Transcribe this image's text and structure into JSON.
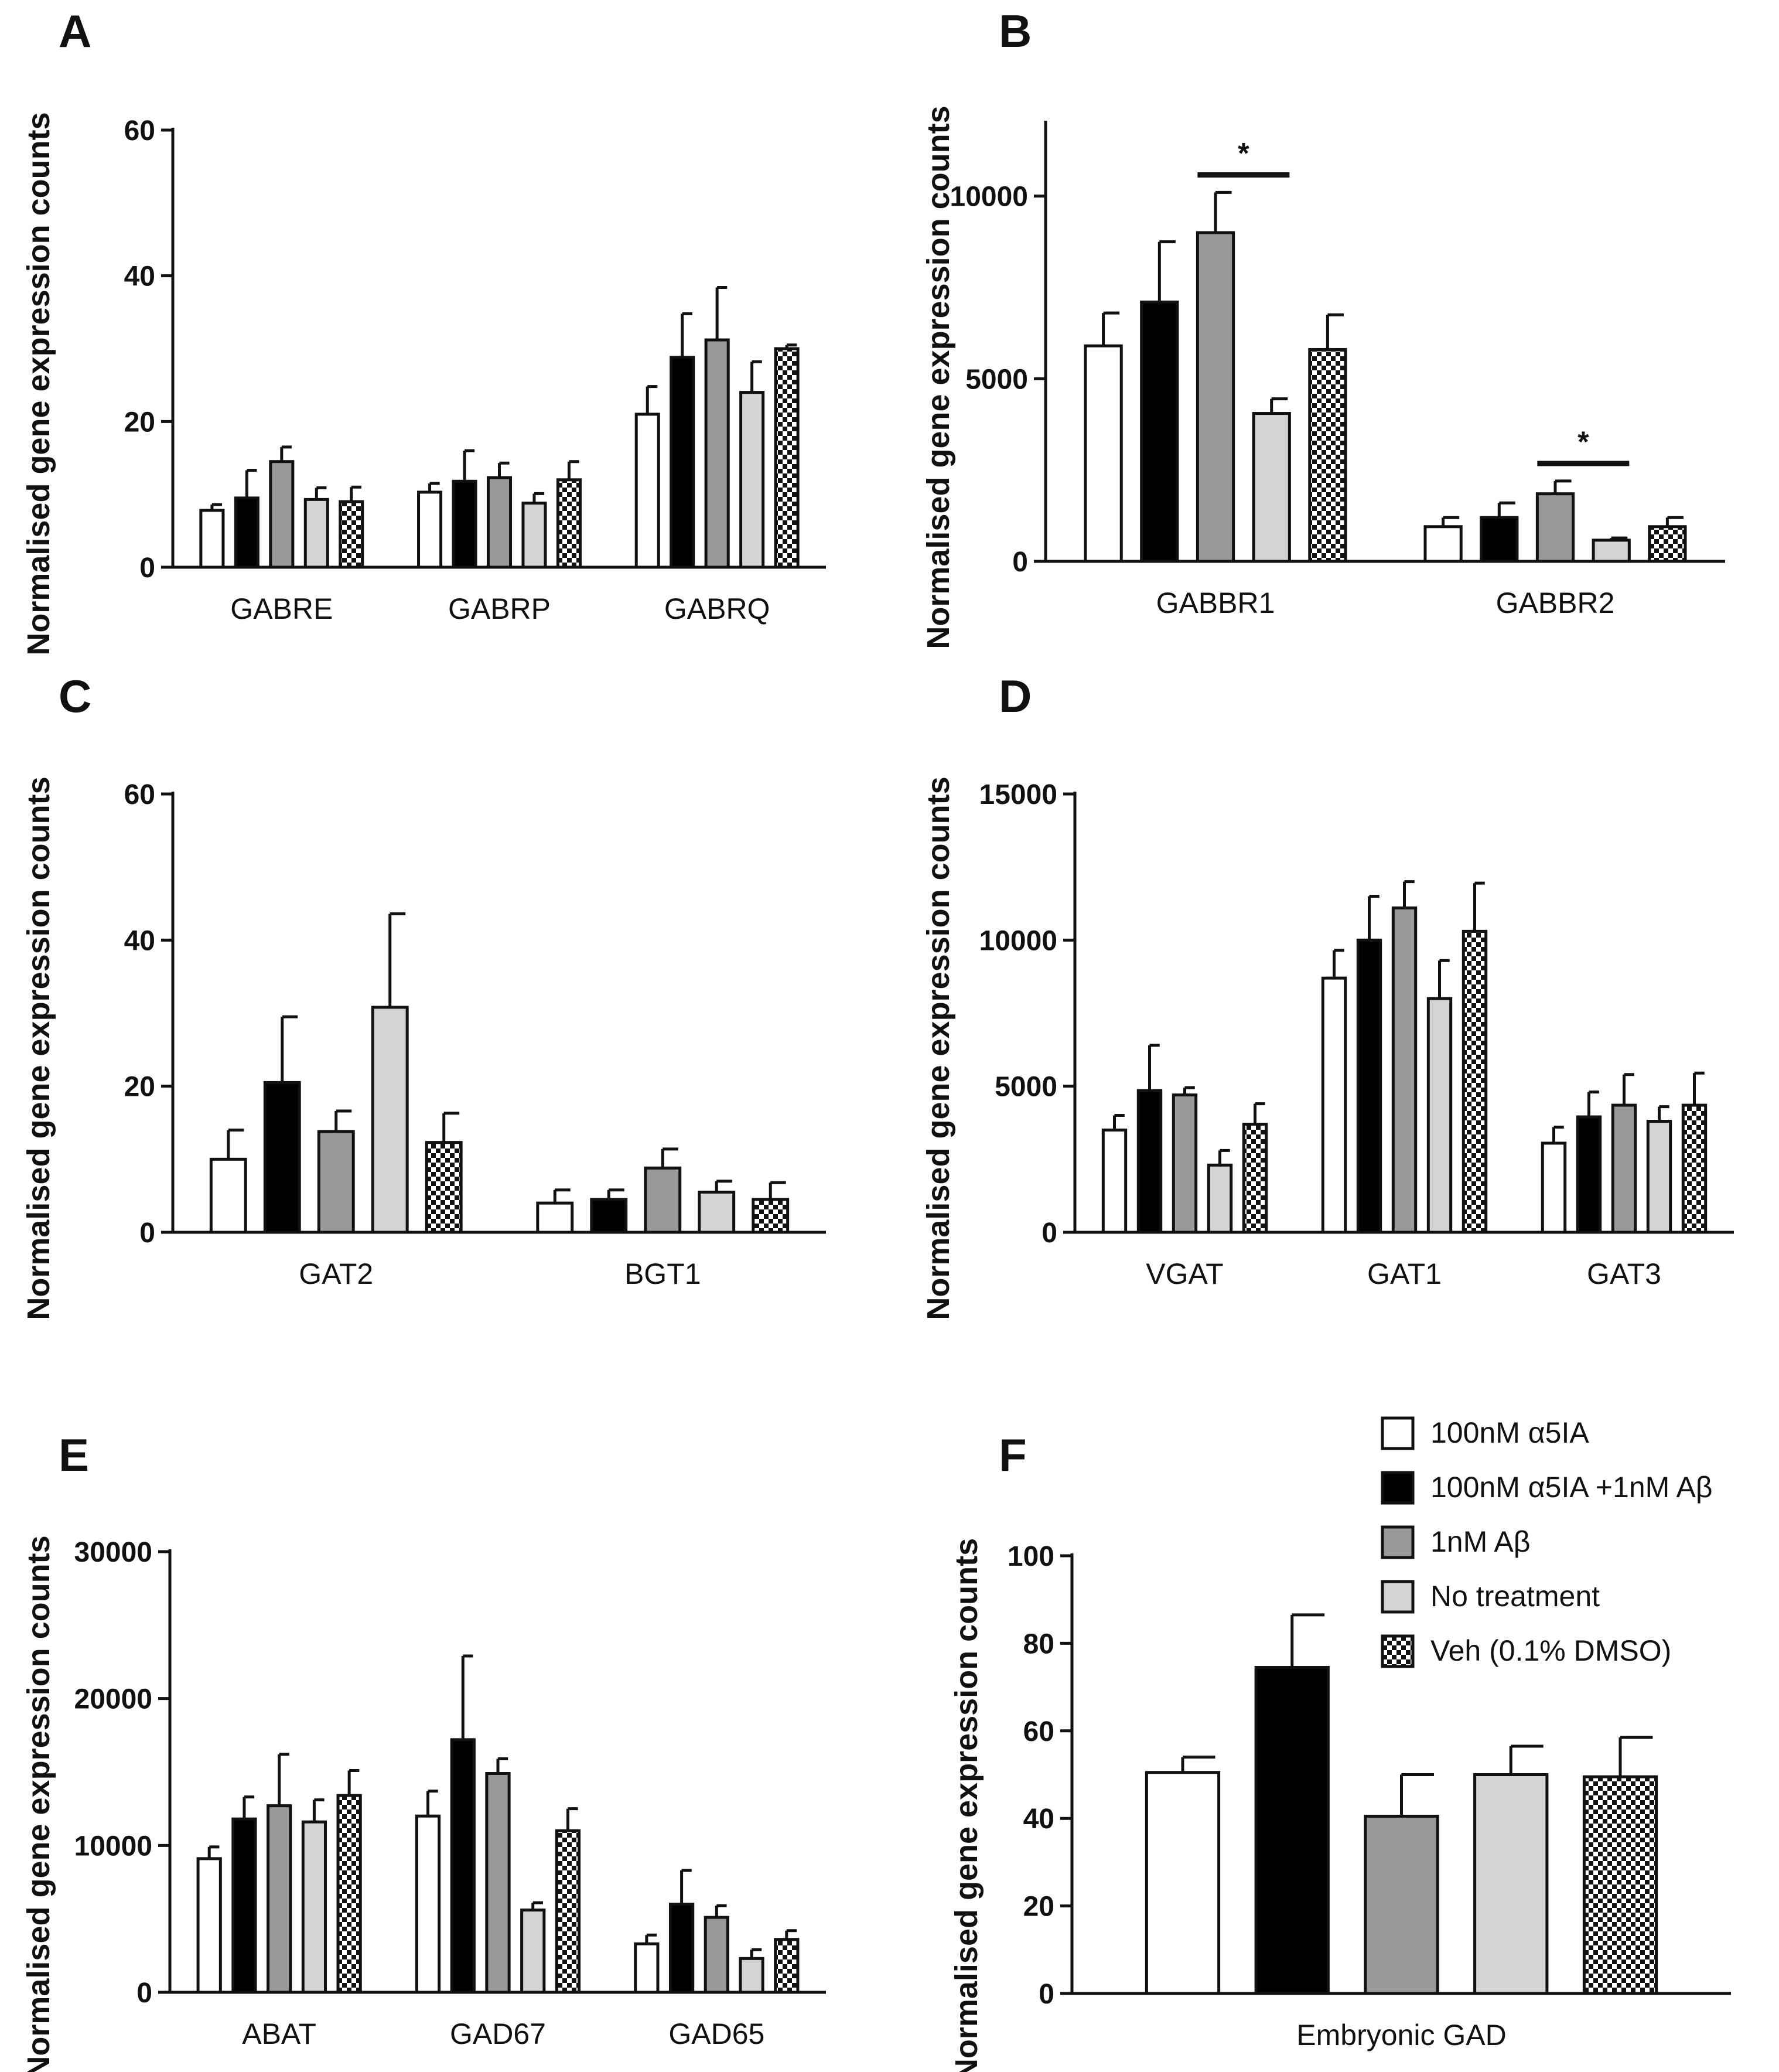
{
  "legend": [
    {
      "key": "a5ia",
      "label": "100nM α5IA",
      "fill": "#ffffff"
    },
    {
      "key": "a5ia_ab",
      "label": "100nM α5IA +1nM Aβ",
      "fill": "#000000"
    },
    {
      "key": "ab",
      "label": "1nM Aβ",
      "fill": "#999999"
    },
    {
      "key": "none",
      "label": "No treatment",
      "fill": "#d4d4d4"
    },
    {
      "key": "veh",
      "label": "Veh (0.1% DMSO)",
      "fill": "checker"
    }
  ],
  "chart_data": [
    {
      "panel": "A",
      "type": "bar",
      "ylabel": "Normalised gene expression counts",
      "ylim": [
        0,
        60
      ],
      "yticks": [
        0,
        20,
        40,
        60
      ],
      "categories": [
        "GABRE",
        "GABRP",
        "GABRQ"
      ],
      "series": [
        {
          "name": "100nM α5IA",
          "values": [
            7.8,
            10.3,
            21.0
          ],
          "errors": [
            0.8,
            1.2,
            3.8
          ]
        },
        {
          "name": "100nM α5IA +1nM Aβ",
          "values": [
            9.5,
            11.8,
            28.8
          ],
          "errors": [
            3.8,
            4.2,
            6.0
          ]
        },
        {
          "name": "1nM Aβ",
          "values": [
            14.5,
            12.3,
            31.2
          ],
          "errors": [
            2.0,
            2.0,
            7.2
          ]
        },
        {
          "name": "No treatment",
          "values": [
            9.3,
            8.8,
            24.0
          ],
          "errors": [
            1.6,
            1.3,
            4.2
          ]
        },
        {
          "name": "Veh (0.1% DMSO)",
          "values": [
            9.0,
            12.0,
            30.0
          ],
          "errors": [
            2.0,
            2.5,
            0.5
          ]
        }
      ],
      "significance": []
    },
    {
      "panel": "B",
      "type": "bar",
      "ylabel": "Normalised gene expression counts",
      "ylim": [
        0,
        12000
      ],
      "yticks": [
        0,
        5000,
        10000
      ],
      "categories": [
        "GABBR1",
        "GABBR2"
      ],
      "series": [
        {
          "name": "100nM α5IA",
          "values": [
            5900,
            950
          ],
          "errors": [
            900,
            250
          ]
        },
        {
          "name": "100nM α5IA +1nM Aβ",
          "values": [
            7100,
            1200
          ],
          "errors": [
            1650,
            400
          ]
        },
        {
          "name": "1nM Aβ",
          "values": [
            9000,
            1850
          ],
          "errors": [
            1100,
            350
          ]
        },
        {
          "name": "No treatment",
          "values": [
            4050,
            580
          ],
          "errors": [
            400,
            60
          ]
        },
        {
          "name": "Veh (0.1% DMSO)",
          "values": [
            5800,
            950
          ],
          "errors": [
            950,
            250
          ]
        }
      ],
      "significance": [
        {
          "category": 0,
          "from": 2,
          "to": 3,
          "label": "*"
        },
        {
          "category": 1,
          "from": 2,
          "to": 3,
          "label": "*"
        }
      ]
    },
    {
      "panel": "C",
      "type": "bar",
      "ylabel": "Normalised gene expression counts",
      "ylim": [
        0,
        60
      ],
      "yticks": [
        0,
        20,
        40,
        60
      ],
      "categories": [
        "GAT2",
        "BGT1"
      ],
      "series": [
        {
          "name": "100nM α5IA",
          "values": [
            10.0,
            4.0
          ],
          "errors": [
            4.0,
            1.8
          ]
        },
        {
          "name": "100nM α5IA +1nM Aβ",
          "values": [
            20.5,
            4.5
          ],
          "errors": [
            9.0,
            1.3
          ]
        },
        {
          "name": "1nM Aβ",
          "values": [
            13.8,
            8.8
          ],
          "errors": [
            2.8,
            2.6
          ]
        },
        {
          "name": "No treatment",
          "values": [
            30.8,
            5.5
          ],
          "errors": [
            12.8,
            1.5
          ]
        },
        {
          "name": "Veh (0.1% DMSO)",
          "values": [
            12.3,
            4.5
          ],
          "errors": [
            4.0,
            2.3
          ]
        }
      ],
      "significance": []
    },
    {
      "panel": "D",
      "type": "bar",
      "ylabel": "Normalised gene expression counts",
      "ylim": [
        0,
        15000
      ],
      "yticks": [
        0,
        5000,
        10000,
        15000
      ],
      "categories": [
        "VGAT",
        "GAT1",
        "GAT3"
      ],
      "series": [
        {
          "name": "100nM α5IA",
          "values": [
            3500,
            8700,
            3050
          ],
          "errors": [
            500,
            950,
            550
          ]
        },
        {
          "name": "100nM α5IA +1nM Aβ",
          "values": [
            4850,
            10000,
            3950
          ],
          "errors": [
            1550,
            1500,
            850
          ]
        },
        {
          "name": "1nM Aβ",
          "values": [
            4700,
            11100,
            4350
          ],
          "errors": [
            250,
            900,
            1050
          ]
        },
        {
          "name": "No treatment",
          "values": [
            2300,
            8000,
            3800
          ],
          "errors": [
            500,
            1300,
            500
          ]
        },
        {
          "name": "Veh (0.1% DMSO)",
          "values": [
            3700,
            10300,
            4350
          ],
          "errors": [
            700,
            1650,
            1100
          ]
        }
      ],
      "significance": []
    },
    {
      "panel": "E",
      "type": "bar",
      "ylabel": "Normalised gene expression counts",
      "ylim": [
        0,
        30000
      ],
      "yticks": [
        0,
        10000,
        20000,
        30000
      ],
      "categories": [
        "ABAT",
        "GAD67",
        "GAD65"
      ],
      "series": [
        {
          "name": "100nM α5IA",
          "values": [
            9100,
            12000,
            3300
          ],
          "errors": [
            800,
            1700,
            600
          ]
        },
        {
          "name": "100nM α5IA +1nM Aβ",
          "values": [
            11800,
            17200,
            6000
          ],
          "errors": [
            1500,
            5700,
            2300
          ]
        },
        {
          "name": "1nM Aβ",
          "values": [
            12700,
            14900,
            5100
          ],
          "errors": [
            3500,
            1000,
            800
          ]
        },
        {
          "name": "No treatment",
          "values": [
            11600,
            5600,
            2300
          ],
          "errors": [
            1500,
            500,
            600
          ]
        },
        {
          "name": "Veh (0.1% DMSO)",
          "values": [
            13400,
            11000,
            3600
          ],
          "errors": [
            1700,
            1500,
            600
          ]
        }
      ],
      "significance": []
    },
    {
      "panel": "F",
      "type": "bar",
      "ylabel": "Normalised gene expression counts",
      "ylim": [
        0,
        100
      ],
      "yticks": [
        0,
        20,
        40,
        60,
        80,
        100
      ],
      "categories": [
        "Embryonic GAD"
      ],
      "series": [
        {
          "name": "100nM α5IA",
          "values": [
            50.5
          ],
          "errors": [
            3.5
          ]
        },
        {
          "name": "100nM α5IA +1nM Aβ",
          "values": [
            74.5
          ],
          "errors": [
            12.0
          ]
        },
        {
          "name": "1nM Aβ",
          "values": [
            40.5
          ],
          "errors": [
            9.5
          ]
        },
        {
          "name": "No treatment",
          "values": [
            50.0
          ],
          "errors": [
            6.5
          ]
        },
        {
          "name": "Veh (0.1% DMSO)",
          "values": [
            49.5
          ],
          "errors": [
            9.0
          ]
        }
      ],
      "significance": []
    }
  ]
}
